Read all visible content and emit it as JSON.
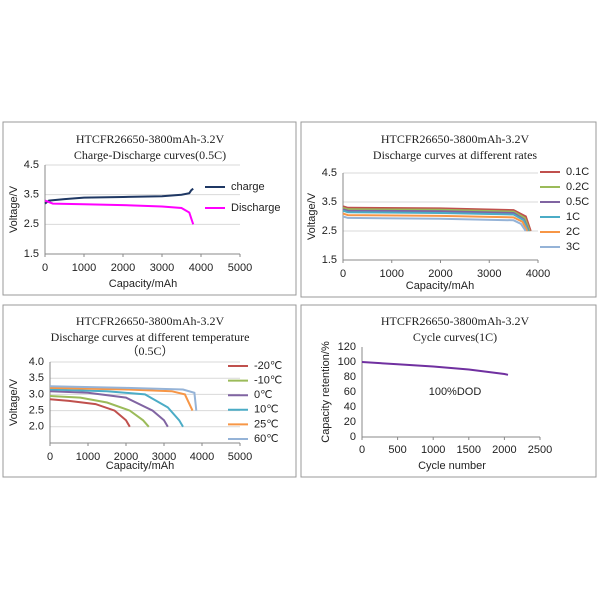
{
  "chart_data": [
    {
      "type": "line",
      "title": "HTCFR26650-3800mAh-3.2V",
      "subtitle": "Charge-Discharge curves(0.5C)",
      "xlabel": "Capacity/mAh",
      "ylabel": "Voltage/V",
      "xlim": [
        0,
        5000
      ],
      "xticks": [
        0,
        1000,
        2000,
        3000,
        4000,
        5000
      ],
      "ylim": [
        1.5,
        4.5
      ],
      "yticks": [
        1.5,
        2.5,
        3.5,
        4.5
      ],
      "grid": true,
      "legend": "upper right",
      "series": [
        {
          "name": "charge",
          "color": "#1f3864",
          "x": [
            0,
            100,
            500,
            1000,
            2000,
            3000,
            3500,
            3700,
            3750,
            3800
          ],
          "values": [
            3.2,
            3.3,
            3.35,
            3.4,
            3.42,
            3.45,
            3.5,
            3.55,
            3.65,
            3.7
          ]
        },
        {
          "name": "Discharge",
          "color": "#ff00ff",
          "x": [
            0,
            200,
            1000,
            2000,
            3000,
            3500,
            3700,
            3800
          ],
          "values": [
            3.3,
            3.2,
            3.18,
            3.15,
            3.1,
            3.05,
            2.9,
            2.5
          ]
        }
      ]
    },
    {
      "type": "line",
      "title": "HTCFR26650-3800mAh-3.2V",
      "subtitle": "Discharge curves at different rates",
      "xlabel": "Capacity/mAh",
      "ylabel": "Voltage/V",
      "xlim": [
        0,
        4000
      ],
      "xticks": [
        0,
        1000,
        2000,
        3000,
        4000
      ],
      "ylim": [
        1.5,
        4.5
      ],
      "yticks": [
        1.5,
        2.5,
        3.5,
        4.5
      ],
      "grid": true,
      "legend": "right",
      "series": [
        {
          "name": "0.1C",
          "color": "#c0504d",
          "x": [
            0,
            100,
            2000,
            3500,
            3750,
            3850
          ],
          "values": [
            3.35,
            3.3,
            3.28,
            3.22,
            3.0,
            2.5
          ]
        },
        {
          "name": "0.2C",
          "color": "#9bbb59",
          "x": [
            0,
            100,
            2000,
            3500,
            3730,
            3830
          ],
          "values": [
            3.3,
            3.25,
            3.23,
            3.17,
            2.95,
            2.5
          ]
        },
        {
          "name": "0.5C",
          "color": "#8064a2",
          "x": [
            0,
            100,
            2000,
            3500,
            3710,
            3810
          ],
          "values": [
            3.25,
            3.2,
            3.18,
            3.12,
            2.9,
            2.5
          ]
        },
        {
          "name": "1C",
          "color": "#4bacc6",
          "x": [
            0,
            100,
            2000,
            3500,
            3700,
            3800
          ],
          "values": [
            3.2,
            3.15,
            3.12,
            3.07,
            2.88,
            2.5
          ]
        },
        {
          "name": "2C",
          "color": "#f79646",
          "x": [
            0,
            100,
            2000,
            3500,
            3680,
            3780
          ],
          "values": [
            3.1,
            3.05,
            3.02,
            2.97,
            2.82,
            2.5
          ]
        },
        {
          "name": "3C",
          "color": "#95b3d7",
          "x": [
            0,
            100,
            2000,
            3500,
            3650,
            3750
          ],
          "values": [
            3.0,
            2.95,
            2.92,
            2.87,
            2.75,
            2.5
          ]
        }
      ]
    },
    {
      "type": "line",
      "title": "HTCFR26650-3800mAh-3.2V",
      "subtitle": "Discharge curves  at different temperature",
      "note": "（0.5C）",
      "xlabel": "Capacity/mAh",
      "ylabel": "Voltage/V",
      "xlim": [
        0,
        5000
      ],
      "xticks": [
        0,
        1000,
        2000,
        3000,
        4000,
        5000
      ],
      "ylim": [
        1.5,
        4.0
      ],
      "yticks": [
        {
          "value": 2,
          "label": "2.0"
        },
        2.5,
        {
          "value": 3,
          "label": "3.0"
        },
        3.5,
        {
          "value": 4,
          "label": "4.0"
        }
      ],
      "grid": true,
      "legend": "right",
      "series": [
        {
          "name": "-20℃",
          "color": "#c0504d",
          "x": [
            0,
            500,
            1200,
            1700,
            2000,
            2100
          ],
          "values": [
            2.85,
            2.8,
            2.7,
            2.5,
            2.2,
            2.0
          ]
        },
        {
          "name": "-10℃",
          "color": "#9bbb59",
          "x": [
            0,
            800,
            1500,
            2100,
            2450,
            2600
          ],
          "values": [
            2.95,
            2.9,
            2.75,
            2.5,
            2.2,
            2.0
          ]
        },
        {
          "name": "0℃",
          "color": "#8064a2",
          "x": [
            0,
            1000,
            2000,
            2700,
            3000,
            3100
          ],
          "values": [
            3.1,
            3.05,
            2.9,
            2.5,
            2.2,
            2.0
          ]
        },
        {
          "name": "10℃",
          "color": "#4bacc6",
          "x": [
            0,
            1500,
            2500,
            3100,
            3400,
            3500
          ],
          "values": [
            3.15,
            3.1,
            3.0,
            2.6,
            2.2,
            2.0
          ]
        },
        {
          "name": "25℃",
          "color": "#f79646",
          "x": [
            0,
            2000,
            3200,
            3550,
            3750
          ],
          "values": [
            3.2,
            3.15,
            3.1,
            3.0,
            2.5
          ]
        },
        {
          "name": "60℃",
          "color": "#95b3d7",
          "x": [
            0,
            2000,
            3500,
            3800,
            3850
          ],
          "values": [
            3.25,
            3.2,
            3.15,
            3.05,
            2.5
          ]
        }
      ]
    },
    {
      "type": "line",
      "title": "HTCFR26650-3800mAh-3.2V",
      "subtitle": "Cycle curves(1C)",
      "note": "100%DOD",
      "xlabel": "Cycle number",
      "ylabel": "Capacity retention/%",
      "xlim": [
        0,
        2500
      ],
      "xticks": [
        0,
        500,
        1000,
        1500,
        2000,
        2500
      ],
      "ylim": [
        0,
        120
      ],
      "yticks": [
        0,
        20,
        40,
        60,
        80,
        100,
        120
      ],
      "grid": false,
      "series": [
        {
          "color": "#7030a0",
          "x": [
            0,
            500,
            1000,
            1500,
            2000,
            2050
          ],
          "values": [
            100,
            97,
            94,
            90,
            84,
            83
          ]
        }
      ]
    }
  ]
}
